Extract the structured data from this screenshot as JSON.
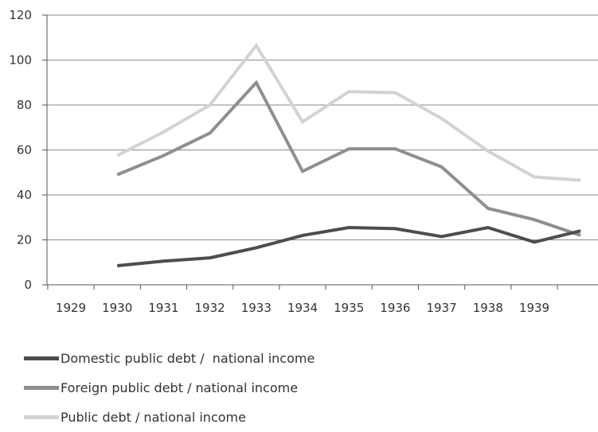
{
  "chart_data": {
    "type": "line",
    "title": "",
    "xlabel": "",
    "ylabel": "",
    "x_tick_labels": [
      "1929",
      "1930",
      "1931",
      "1932",
      "1933",
      "1934",
      "1935",
      "1936",
      "1937",
      "1938",
      "1939"
    ],
    "ylim": [
      0,
      120
    ],
    "y_ticks": [
      0,
      20,
      40,
      60,
      80,
      100,
      120
    ],
    "grid": "horizontal",
    "legend_position": "bottom-left",
    "x": [
      1930,
      1931,
      1932,
      1933,
      1934,
      1935,
      1936,
      1937,
      1938,
      1939,
      1940
    ],
    "series": [
      {
        "name": "Domestic public debt /  national income",
        "color": "#4d4d4d",
        "values": [
          8.5,
          10.5,
          12,
          16.5,
          22,
          25.5,
          25,
          21.5,
          25.5,
          19,
          24
        ]
      },
      {
        "name": "Foreign public debt / national income",
        "color": "#8f8f8f",
        "values": [
          49,
          57.5,
          67.5,
          90,
          50.5,
          60.5,
          60.5,
          52.5,
          34,
          29,
          22
        ]
      },
      {
        "name": "Public debt / national income",
        "color": "#d3d3d3",
        "values": [
          57.5,
          68,
          80,
          106.5,
          72.5,
          86,
          85.5,
          74,
          59.5,
          48,
          46.5
        ]
      }
    ]
  }
}
